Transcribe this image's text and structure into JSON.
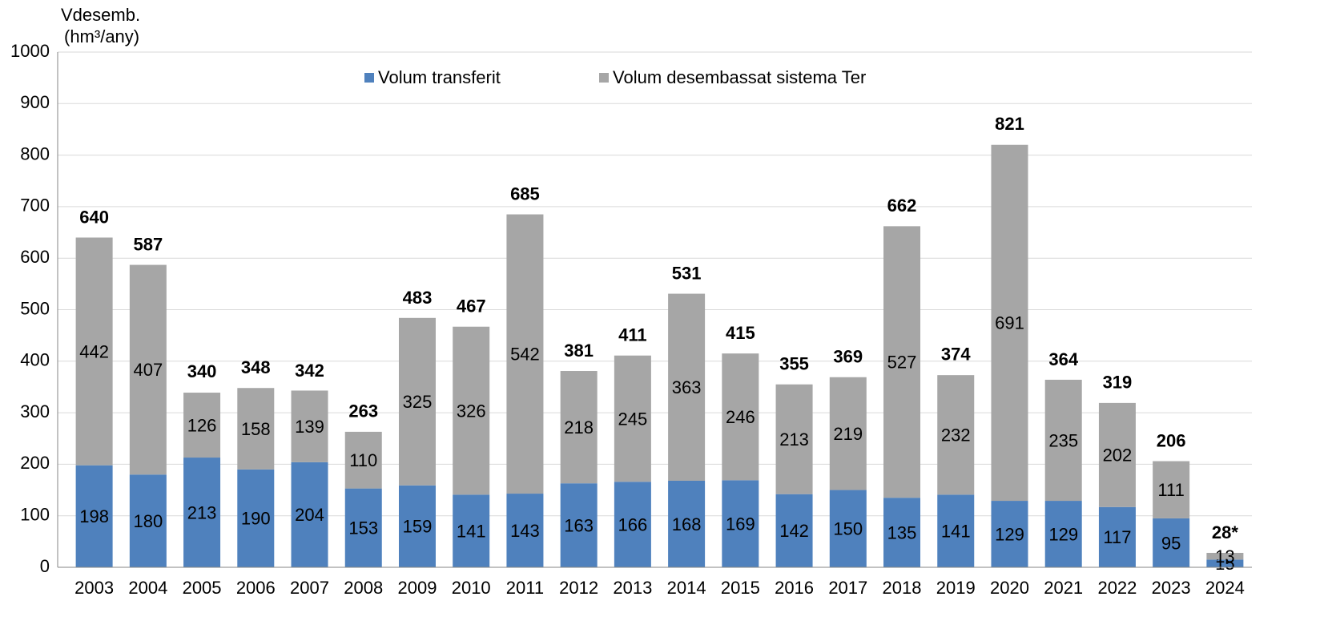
{
  "chart_data": {
    "type": "stacked_bar",
    "y_label": [
      "Vdesemb.",
      "(hm³/any)"
    ],
    "categories": [
      "2003",
      "2004",
      "2005",
      "2006",
      "2007",
      "2008",
      "2009",
      "2010",
      "2011",
      "2012",
      "2013",
      "2014",
      "2015",
      "2016",
      "2017",
      "2018",
      "2019",
      "2020",
      "2021",
      "2022",
      "2023",
      "2024"
    ],
    "series": [
      {
        "name": "Volum transferit",
        "color": "#4f81bd",
        "label_color": "#000000",
        "values": [
          198,
          180,
          213,
          190,
          204,
          153,
          159,
          141,
          143,
          163,
          166,
          168,
          169,
          142,
          150,
          135,
          141,
          129,
          129,
          117,
          95,
          15
        ]
      },
      {
        "name": "Volum desembassat sistema Ter",
        "color": "#a6a6a6",
        "label_color": "#ffffff",
        "values": [
          442,
          407,
          126,
          158,
          139,
          110,
          325,
          326,
          542,
          218,
          245,
          363,
          246,
          213,
          219,
          527,
          232,
          691,
          235,
          202,
          111,
          13
        ]
      }
    ],
    "totals": {
      "values": [
        640,
        587,
        340,
        348,
        342,
        263,
        483,
        467,
        685,
        381,
        411,
        531,
        415,
        355,
        369,
        662,
        374,
        821,
        364,
        319,
        206,
        28
      ],
      "value_labels": [
        "640",
        "587",
        "340",
        "348",
        "342",
        "263",
        "483",
        "467",
        "685",
        "381",
        "411",
        "531",
        "415",
        "355",
        "369",
        "662",
        "374",
        "821",
        "364",
        "319",
        "206",
        "28*"
      ]
    },
    "ylim": [
      0,
      1000
    ],
    "yticks": [
      0,
      100,
      200,
      300,
      400,
      500,
      600,
      700,
      800,
      900,
      1000
    ],
    "grid": true,
    "legend": "top"
  }
}
